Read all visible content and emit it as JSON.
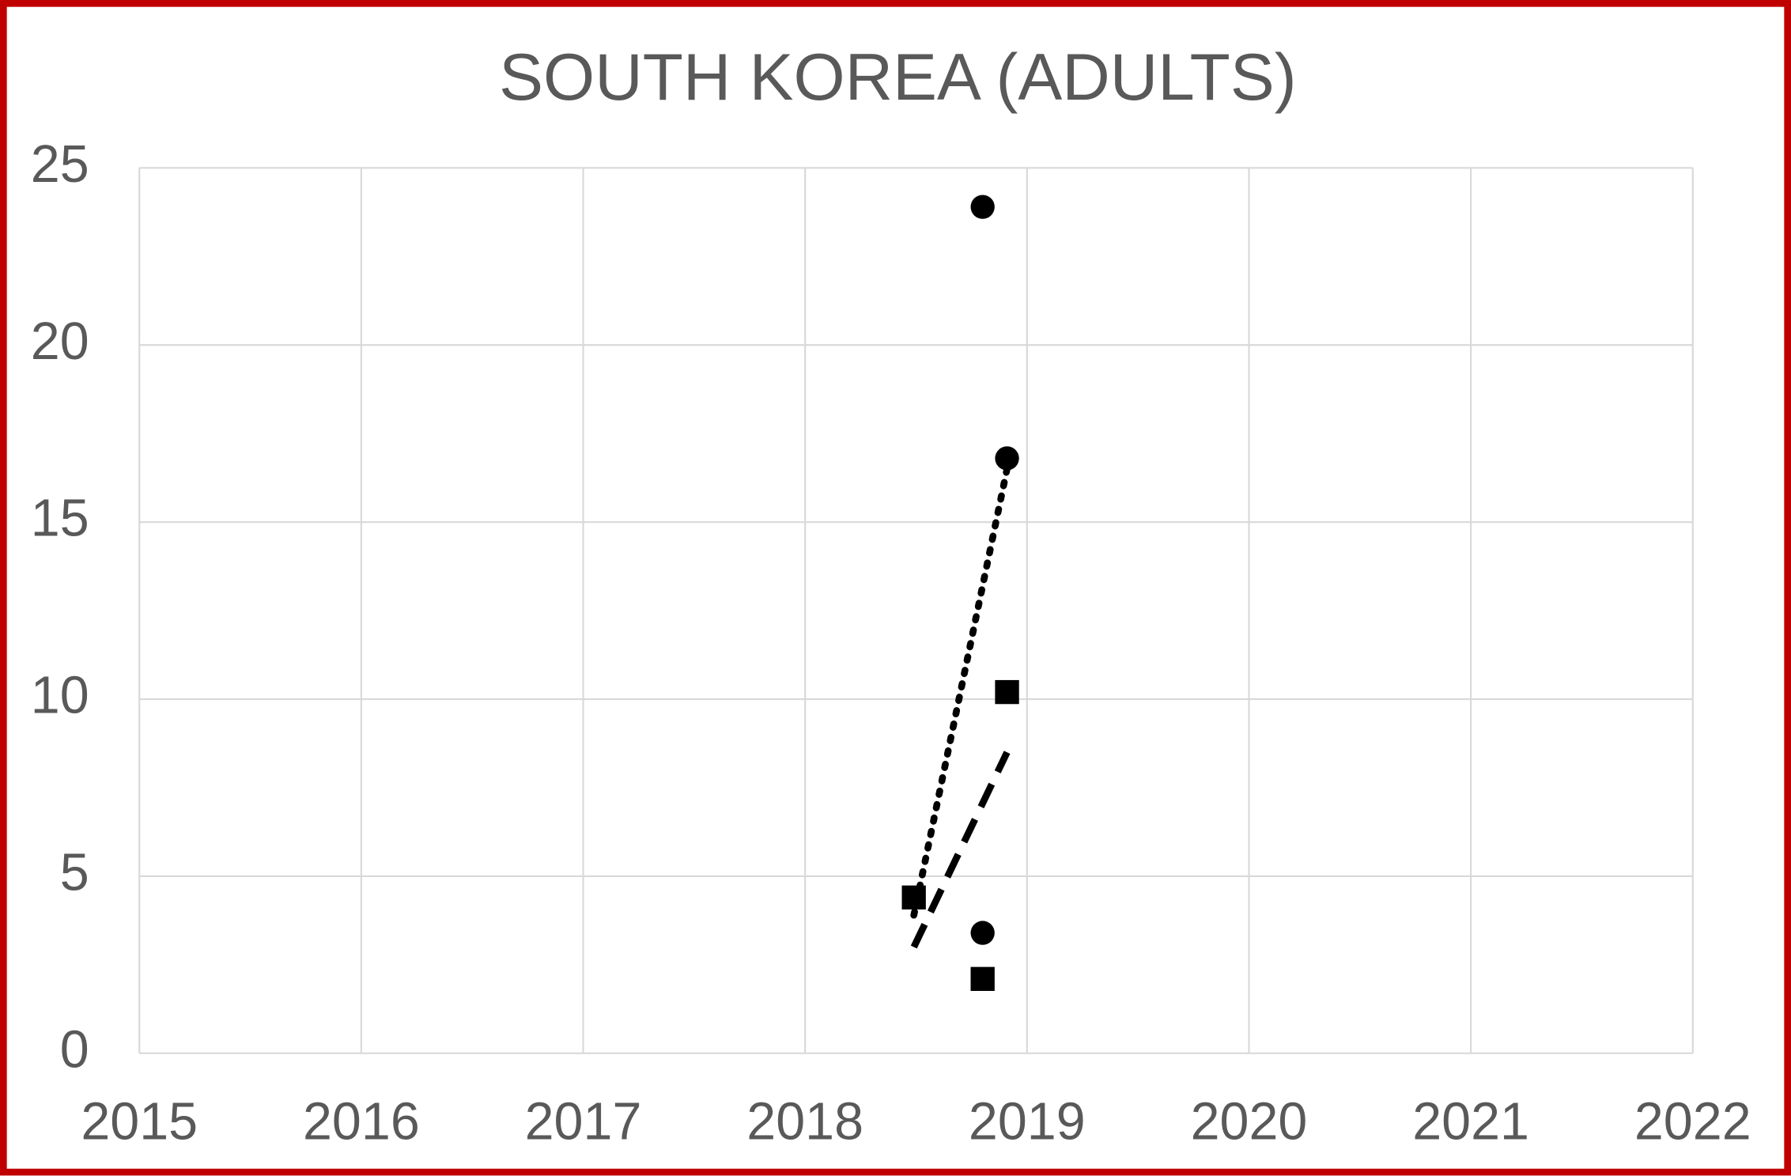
{
  "chart_data": {
    "type": "scatter",
    "title": "SOUTH KOREA (ADULTS)",
    "xlim": [
      2015,
      2022
    ],
    "xticks": [
      2015,
      2016,
      2017,
      2018,
      2019,
      2020,
      2021,
      2022
    ],
    "ylim": [
      0,
      25
    ],
    "yticks": [
      0,
      5,
      10,
      15,
      20,
      25
    ],
    "grid": true,
    "series": [
      {
        "marker": "circle",
        "color": "#000000",
        "x": [
          2018.8,
          2018.91,
          2018.8
        ],
        "values": [
          23.9,
          16.8,
          3.4
        ]
      },
      {
        "marker": "square",
        "color": "#000000",
        "x": [
          2018.49,
          2018.91,
          2018.8
        ],
        "values": [
          4.4,
          10.2,
          2.1
        ]
      }
    ],
    "trendlines": [
      {
        "style": "dotted",
        "color": "#000000",
        "x": [
          2018.49,
          2018.91
        ],
        "values": [
          3.9,
          16.5
        ]
      },
      {
        "style": "dashed",
        "color": "#000000",
        "x": [
          2018.49,
          2018.91
        ],
        "values": [
          3.0,
          8.5
        ]
      }
    ]
  }
}
